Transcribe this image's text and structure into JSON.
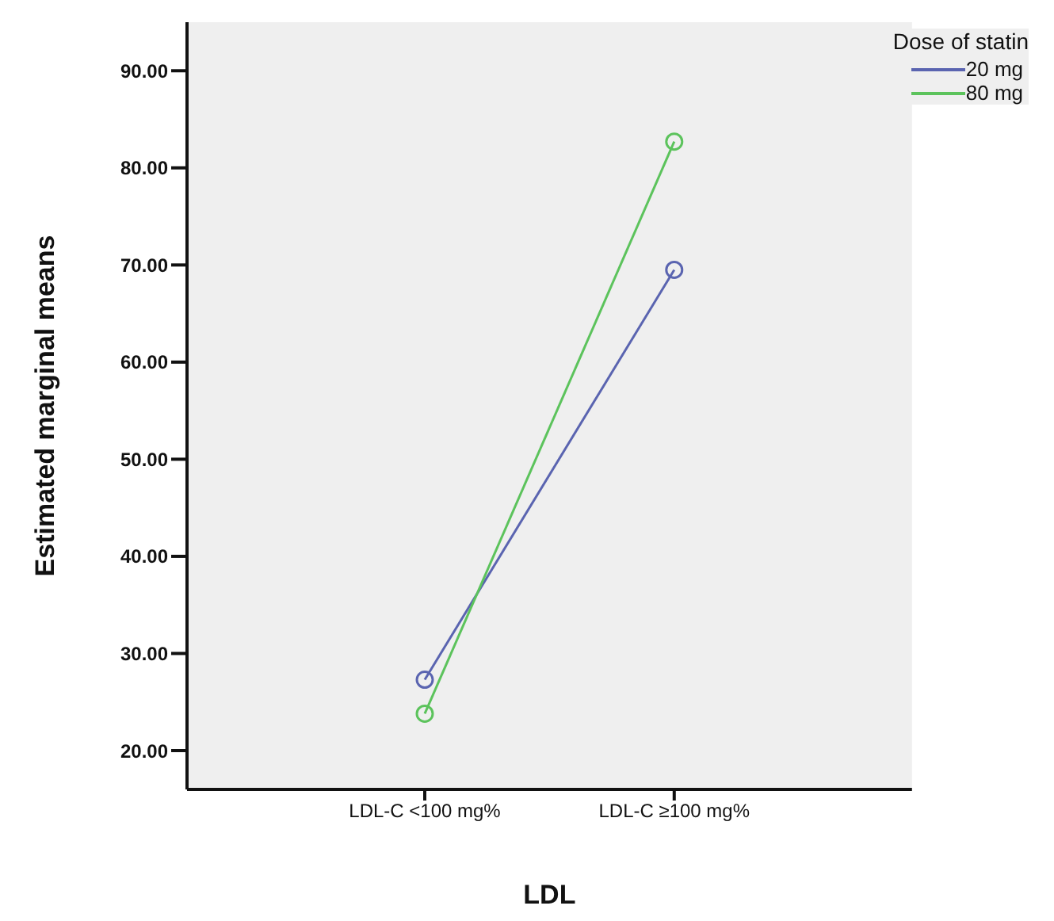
{
  "chart_data": {
    "type": "line",
    "xlabel": "LDL",
    "ylabel": "Estimated marginal means",
    "legend_title": "Dose of statin",
    "categories": [
      "LDL-C <100 mg%",
      "LDL-C ≥100 mg%"
    ],
    "series": [
      {
        "name": "20 mg",
        "color": "#5a64b0",
        "values": [
          27.3,
          69.5
        ]
      },
      {
        "name": "80 mg",
        "color": "#5cc35c",
        "values": [
          23.8,
          82.7
        ]
      }
    ],
    "ylim": [
      16,
      95
    ],
    "yticks": [
      {
        "value": 20,
        "label": "20.00"
      },
      {
        "value": 30,
        "label": "30.00"
      },
      {
        "value": 40,
        "label": "40.00"
      },
      {
        "value": 50,
        "label": "50.00"
      },
      {
        "value": 60,
        "label": "60.00"
      },
      {
        "value": 70,
        "label": "70.00"
      },
      {
        "value": 80,
        "label": "80.00"
      },
      {
        "value": 90,
        "label": "90.00"
      }
    ],
    "marker": "circle",
    "line_style": "solid",
    "legend": "top right",
    "grid": false
  }
}
